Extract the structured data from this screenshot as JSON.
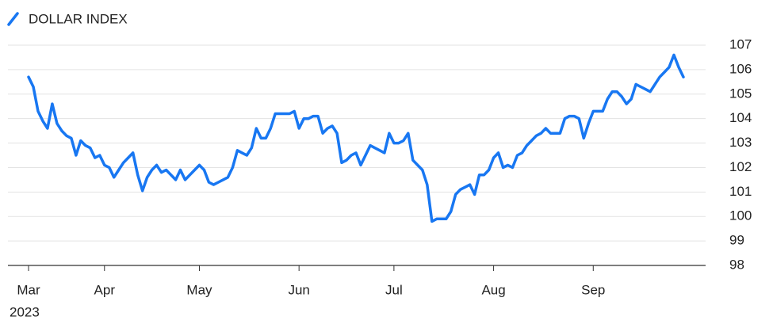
{
  "chart_data": {
    "type": "line",
    "year": "2023",
    "categories": [
      "Mar",
      null,
      null,
      null,
      null,
      null,
      null,
      null,
      null,
      null,
      null,
      null,
      null,
      null,
      null,
      null,
      "Apr",
      null,
      null,
      null,
      null,
      null,
      null,
      null,
      null,
      null,
      null,
      null,
      null,
      null,
      null,
      null,
      null,
      null,
      null,
      null,
      "May",
      null,
      null,
      null,
      null,
      null,
      null,
      null,
      null,
      null,
      null,
      null,
      null,
      null,
      null,
      null,
      null,
      null,
      null,
      null,
      null,
      "Jun",
      null,
      null,
      null,
      null,
      null,
      null,
      null,
      null,
      null,
      null,
      null,
      null,
      null,
      null,
      null,
      null,
      null,
      null,
      null,
      "Jul",
      null,
      null,
      null,
      null,
      null,
      null,
      null,
      null,
      null,
      null,
      null,
      null,
      null,
      null,
      null,
      null,
      null,
      null,
      null,
      null,
      "Aug",
      null,
      null,
      null,
      null,
      null,
      null,
      null,
      null,
      null,
      null,
      null,
      null,
      null,
      null,
      null,
      null,
      null,
      null,
      null,
      null,
      "Sep",
      null,
      null,
      null,
      null,
      null,
      null,
      null,
      null,
      null,
      null,
      null,
      null,
      null,
      null,
      null,
      null,
      null,
      null,
      null
    ],
    "series": [
      {
        "name": "DOLLAR INDEX",
        "color": "#1877f2",
        "values": [
          105.7,
          105.3,
          104.3,
          103.9,
          103.6,
          104.6,
          103.8,
          103.5,
          103.3,
          103.2,
          102.5,
          103.1,
          102.9,
          102.8,
          102.4,
          102.5,
          102.1,
          102.0,
          101.6,
          101.9,
          102.2,
          102.4,
          102.6,
          101.7,
          101.05,
          101.6,
          101.9,
          102.1,
          101.8,
          101.9,
          101.7,
          101.5,
          101.9,
          101.5,
          101.7,
          101.9,
          102.1,
          101.9,
          101.4,
          101.3,
          101.4,
          101.5,
          101.6,
          102.0,
          102.7,
          102.6,
          102.5,
          102.8,
          103.6,
          103.2,
          103.2,
          103.6,
          104.2,
          104.2,
          104.2,
          104.2,
          104.3,
          103.6,
          104.0,
          104.0,
          104.1,
          104.1,
          103.4,
          103.6,
          103.7,
          103.4,
          102.2,
          102.3,
          102.5,
          102.6,
          102.1,
          102.5,
          102.9,
          102.8,
          102.7,
          102.6,
          103.4,
          103.0,
          103.0,
          103.1,
          103.4,
          102.3,
          102.1,
          101.9,
          101.3,
          99.8,
          99.9,
          99.9,
          99.9,
          100.2,
          100.9,
          101.1,
          101.2,
          101.3,
          100.9,
          101.7,
          101.7,
          101.9,
          102.4,
          102.6,
          102.0,
          102.1,
          102.0,
          102.5,
          102.6,
          102.9,
          103.1,
          103.3,
          103.4,
          103.6,
          103.4,
          103.4,
          103.4,
          104.0,
          104.1,
          104.1,
          104.0,
          103.2,
          103.8,
          104.3,
          104.3,
          104.3,
          104.8,
          105.1,
          105.1,
          104.9,
          104.6,
          104.8,
          105.4,
          105.3,
          105.2,
          105.1,
          105.4,
          105.7,
          105.9,
          106.1,
          106.6,
          106.1,
          105.7
        ]
      }
    ],
    "ylim": [
      98,
      107
    ],
    "yticks": [
      98,
      99,
      100,
      101,
      102,
      103,
      104,
      105,
      106,
      107
    ],
    "grid": true
  }
}
